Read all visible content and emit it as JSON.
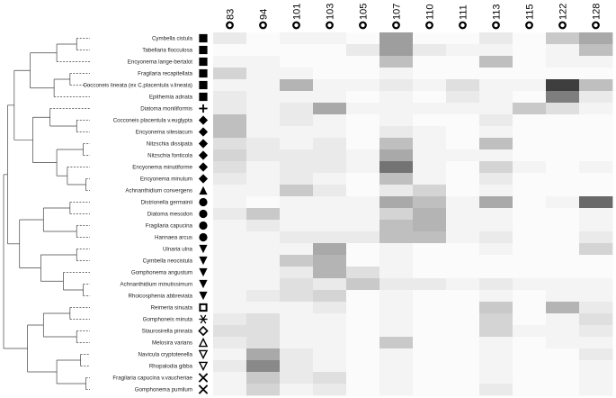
{
  "chart_data": {
    "type": "heatmap",
    "title": "",
    "xlabel": "",
    "ylabel": "",
    "legend": "none",
    "grid": false,
    "columns": [
      "83",
      "94",
      "101",
      "103",
      "105",
      "107",
      "110",
      "111",
      "113",
      "115",
      "122",
      "128"
    ],
    "rows": [
      {
        "taxon": "Cymbella cistula",
        "marker": "square",
        "values": [
          0.1,
          0.02,
          0.05,
          0.05,
          0.02,
          0.45,
          0.02,
          0.02,
          0.1,
          0.02,
          0.25,
          0.4
        ]
      },
      {
        "taxon": "Tabellaria flocculosa",
        "marker": "square",
        "values": [
          0.02,
          0.02,
          0.02,
          0.02,
          0.1,
          0.45,
          0.1,
          0.05,
          0.05,
          0.02,
          0.05,
          0.3
        ]
      },
      {
        "taxon": "Encyonema lange-bertalot",
        "marker": "square",
        "values": [
          0.05,
          0.05,
          0.02,
          0.02,
          0.02,
          0.3,
          0.02,
          0.02,
          0.3,
          0.02,
          0.05,
          0.05
        ]
      },
      {
        "taxon": "Fragilaria recapitellata",
        "marker": "square",
        "values": [
          0.2,
          0.05,
          0.05,
          0.02,
          0.02,
          0.05,
          0.02,
          0.02,
          0.02,
          0.02,
          0.02,
          0.02
        ]
      },
      {
        "taxon": "Cocconeis lineata (ex C.placentula v.lineata)",
        "marker": "square",
        "values": [
          0.05,
          0.05,
          0.35,
          0.05,
          0.05,
          0.1,
          0.05,
          0.15,
          0.05,
          0.05,
          0.9,
          0.3
        ]
      },
      {
        "taxon": "Epithemia adnata",
        "marker": "square",
        "values": [
          0.1,
          0.05,
          0.05,
          0.05,
          0.02,
          0.05,
          0.02,
          0.1,
          0.05,
          0.02,
          0.6,
          0.1
        ]
      },
      {
        "taxon": "Diatoma moniliformis",
        "marker": "plus",
        "values": [
          0.1,
          0.05,
          0.1,
          0.4,
          0.05,
          0.05,
          0.05,
          0.05,
          0.05,
          0.25,
          0.15,
          0.05
        ]
      },
      {
        "taxon": "Cocconeis placentula v.euglypta",
        "marker": "diamond",
        "values": [
          0.3,
          0.05,
          0.1,
          0.05,
          0.02,
          0.05,
          0.02,
          0.02,
          0.1,
          0.02,
          0.02,
          0.02
        ]
      },
      {
        "taxon": "Encyonema silesiacum",
        "marker": "diamond",
        "values": [
          0.3,
          0.05,
          0.05,
          0.05,
          0.02,
          0.1,
          0.05,
          0.02,
          0.05,
          0.02,
          0.02,
          0.02
        ]
      },
      {
        "taxon": "Nitzschia dissipata",
        "marker": "diamond",
        "values": [
          0.15,
          0.1,
          0.05,
          0.1,
          0.02,
          0.3,
          0.05,
          0.02,
          0.3,
          0.02,
          0.02,
          0.02
        ]
      },
      {
        "taxon": "Nitzschia fonticola",
        "marker": "diamond",
        "values": [
          0.2,
          0.1,
          0.1,
          0.1,
          0.05,
          0.4,
          0.05,
          0.05,
          0.05,
          0.02,
          0.02,
          0.02
        ]
      },
      {
        "taxon": "Encyonema minutiforme",
        "marker": "diamond",
        "values": [
          0.15,
          0.05,
          0.1,
          0.1,
          0.05,
          0.65,
          0.05,
          0.02,
          0.2,
          0.05,
          0.02,
          0.05
        ]
      },
      {
        "taxon": "Encyonema minutum",
        "marker": "diamond",
        "values": [
          0.1,
          0.05,
          0.1,
          0.05,
          0.02,
          0.3,
          0.05,
          0.02,
          0.1,
          0.02,
          0.02,
          0.02
        ]
      },
      {
        "taxon": "Achnanthidium convergens",
        "marker": "triangle",
        "values": [
          0.05,
          0.05,
          0.25,
          0.1,
          0.02,
          0.1,
          0.2,
          0.02,
          0.05,
          0.02,
          0.02,
          0.02
        ]
      },
      {
        "taxon": "Distrionella germainii",
        "marker": "circle",
        "values": [
          0.05,
          0.02,
          0.05,
          0.05,
          0.05,
          0.4,
          0.3,
          0.05,
          0.4,
          0.02,
          0.05,
          0.7
        ]
      },
      {
        "taxon": "Diatoma mesodon",
        "marker": "circle",
        "values": [
          0.1,
          0.25,
          0.05,
          0.05,
          0.05,
          0.2,
          0.35,
          0.05,
          0.05,
          0.02,
          0.02,
          0.05
        ]
      },
      {
        "taxon": "Fragilaria capucina",
        "marker": "circle",
        "values": [
          0.05,
          0.1,
          0.05,
          0.05,
          0.05,
          0.3,
          0.35,
          0.05,
          0.05,
          0.02,
          0.02,
          0.05
        ]
      },
      {
        "taxon": "Hannaea arcus",
        "marker": "circle",
        "values": [
          0.05,
          0.05,
          0.1,
          0.1,
          0.1,
          0.3,
          0.3,
          0.05,
          0.1,
          0.02,
          0.02,
          0.1
        ]
      },
      {
        "taxon": "Ulnaria ulna",
        "marker": "triangle-down",
        "values": [
          0.05,
          0.05,
          0.05,
          0.4,
          0.02,
          0.05,
          0.02,
          0.02,
          0.05,
          0.02,
          0.02,
          0.2
        ]
      },
      {
        "taxon": "Cymbella neocistula",
        "marker": "triangle-down",
        "values": [
          0.05,
          0.05,
          0.25,
          0.35,
          0.02,
          0.05,
          0.02,
          0.02,
          0.02,
          0.02,
          0.02,
          0.02
        ]
      },
      {
        "taxon": "Gomphonema angustum",
        "marker": "triangle-down",
        "values": [
          0.05,
          0.05,
          0.1,
          0.35,
          0.15,
          0.05,
          0.02,
          0.02,
          0.02,
          0.02,
          0.02,
          0.02
        ]
      },
      {
        "taxon": "Achnanthidium minutissimum",
        "marker": "triangle-down",
        "values": [
          0.05,
          0.05,
          0.15,
          0.1,
          0.25,
          0.1,
          0.1,
          0.05,
          0.1,
          0.05,
          0.05,
          0.05
        ]
      },
      {
        "taxon": "Rhoicosphenia abbreviata",
        "marker": "triangle-down",
        "values": [
          0.05,
          0.1,
          0.15,
          0.2,
          0.02,
          0.05,
          0.02,
          0.02,
          0.05,
          0.02,
          0.05,
          0.05
        ]
      },
      {
        "taxon": "Reimeria sinuata",
        "marker": "square-open",
        "values": [
          0.05,
          0.05,
          0.05,
          0.1,
          0.02,
          0.05,
          0.02,
          0.02,
          0.25,
          0.02,
          0.35,
          0.1
        ]
      },
      {
        "taxon": "Gomphoneis minuta",
        "marker": "asterisk",
        "values": [
          0.1,
          0.15,
          0.05,
          0.05,
          0.02,
          0.05,
          0.02,
          0.02,
          0.2,
          0.02,
          0.05,
          0.15
        ]
      },
      {
        "taxon": "Staurosirella pinnata",
        "marker": "diamond-open",
        "values": [
          0.15,
          0.15,
          0.05,
          0.05,
          0.02,
          0.05,
          0.02,
          0.02,
          0.2,
          0.05,
          0.05,
          0.1
        ]
      },
      {
        "taxon": "Melosira varians",
        "marker": "triangle-open",
        "values": [
          0.1,
          0.15,
          0.05,
          0.05,
          0.02,
          0.25,
          0.02,
          0.02,
          0.05,
          0.02,
          0.05,
          0.05
        ]
      },
      {
        "taxon": "Navicula cryptotenella",
        "marker": "triangle-down-open",
        "values": [
          0.05,
          0.4,
          0.1,
          0.05,
          0.02,
          0.05,
          0.02,
          0.02,
          0.05,
          0.02,
          0.02,
          0.1
        ]
      },
      {
        "taxon": "Rhopalodia gibba",
        "marker": "triangle-down-open",
        "values": [
          0.1,
          0.55,
          0.1,
          0.05,
          0.02,
          0.05,
          0.02,
          0.02,
          0.05,
          0.02,
          0.02,
          0.05
        ]
      },
      {
        "taxon": "Fragilaria capucina v.vaucheriae",
        "marker": "cross",
        "values": [
          0.05,
          0.25,
          0.1,
          0.15,
          0.02,
          0.05,
          0.02,
          0.02,
          0.05,
          0.02,
          0.02,
          0.05
        ]
      },
      {
        "taxon": "Gomphonema pumilum",
        "marker": "cross",
        "values": [
          0.05,
          0.2,
          0.05,
          0.1,
          0.02,
          0.05,
          0.02,
          0.02,
          0.1,
          0.02,
          0.02,
          0.05
        ]
      }
    ]
  }
}
